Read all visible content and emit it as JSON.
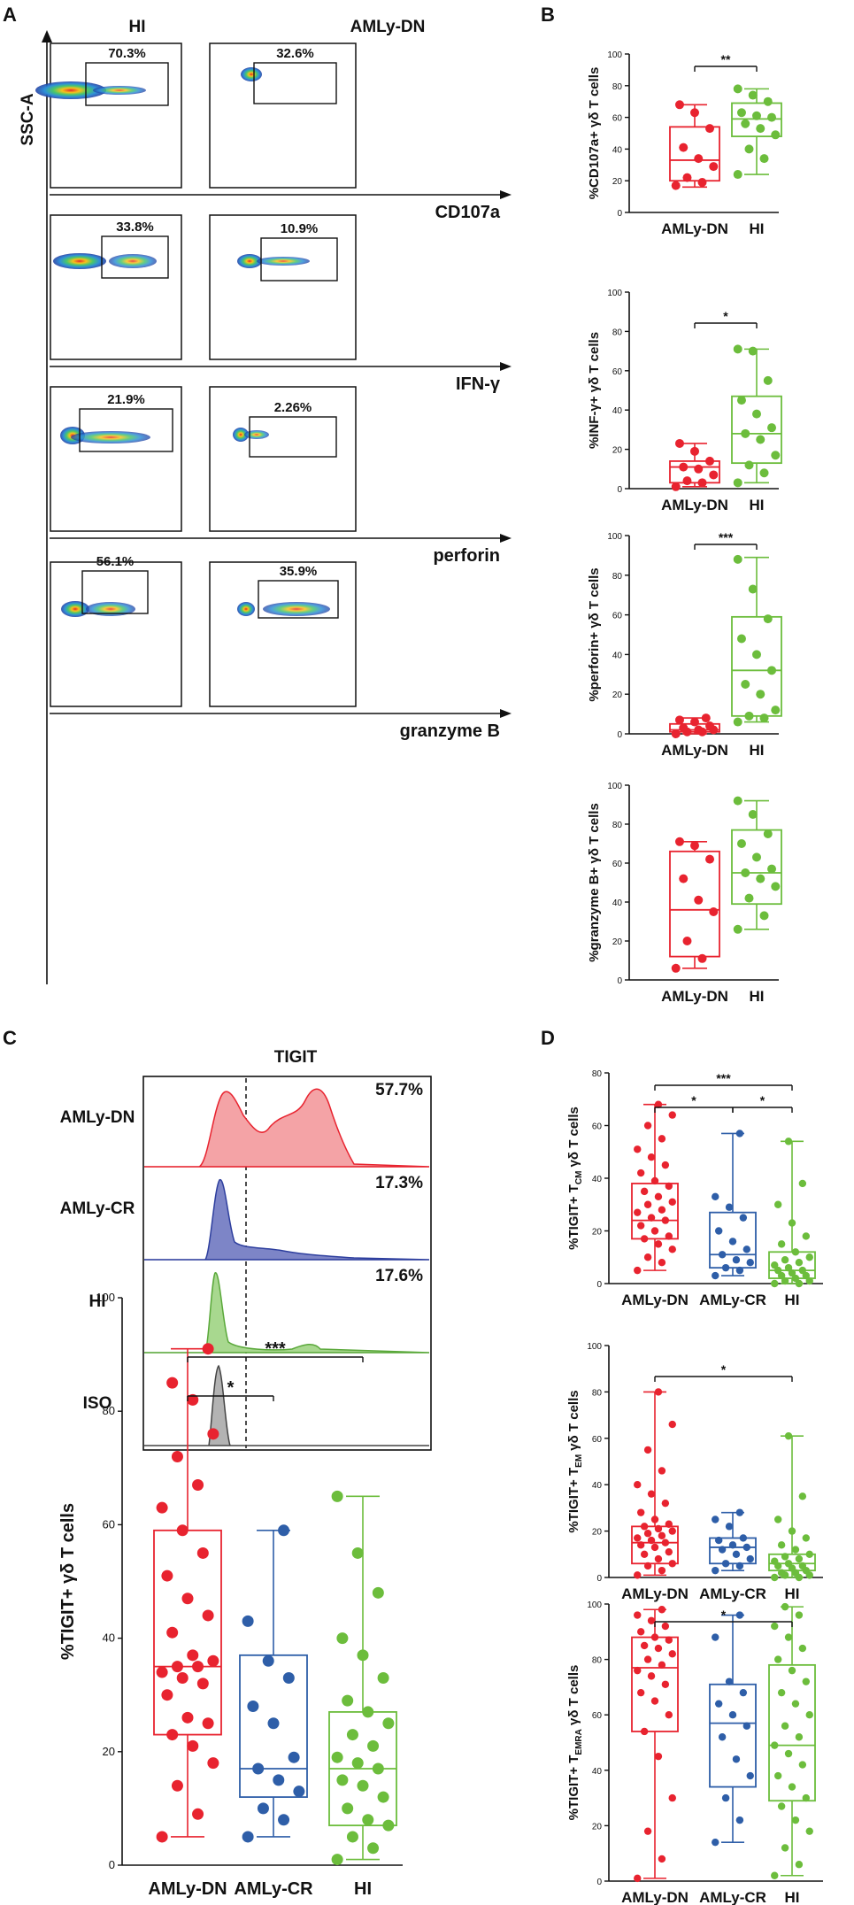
{
  "panels": {
    "A": "A",
    "B": "B",
    "C": "C",
    "D": "D"
  },
  "colors": {
    "AMLy-DN": "#e8232f",
    "AMLy-CR": "#2e5ea8",
    "HI": "#6cbd3c"
  },
  "panelA": {
    "y_axis_label": "SSC-A",
    "columns": [
      "HI",
      "AMLy-DN"
    ],
    "rows": [
      {
        "marker": "CD107a",
        "hi_pct": "70.3%",
        "dn_pct": "32.6%"
      },
      {
        "marker": "IFN-γ",
        "hi_pct": "33.8%",
        "dn_pct": "10.9%"
      },
      {
        "marker": "perforin",
        "hi_pct": "21.9%",
        "dn_pct": "2.26%"
      },
      {
        "marker": "granzyme B",
        "hi_pct": "56.1%",
        "dn_pct": "35.9%"
      }
    ]
  },
  "panelC_hist": {
    "title": "TIGIT",
    "rows": [
      {
        "label": "AMLy-DN",
        "pct": "57.7%",
        "color": "#e8232f",
        "fill": "#f4a3a6"
      },
      {
        "label": "AMLy-CR",
        "pct": "17.3%",
        "color": "#2e3f9e",
        "fill": "#7d85c7"
      },
      {
        "label": "HI",
        "pct": "17.6%",
        "color": "#5aa83a",
        "fill": "#a8d88f"
      },
      {
        "label": "ISO",
        "pct": "",
        "color": "#444444",
        "fill": "#b3b3b3"
      }
    ]
  },
  "chart_data": [
    {
      "id": "B1",
      "type": "box",
      "ylabel": "%CD107a+ γδ T cells",
      "ylim": [
        0,
        100
      ],
      "yticks": [
        0,
        20,
        40,
        60,
        80,
        100
      ],
      "categories": [
        "AMLy-DN",
        "HI"
      ],
      "boxes": [
        {
          "min": 16,
          "q1": 20,
          "median": 33,
          "q3": 54,
          "max": 68
        },
        {
          "min": 24,
          "q1": 48,
          "median": 59,
          "q3": 69,
          "max": 78
        }
      ],
      "points": [
        [
          17,
          19,
          22,
          29,
          34,
          41,
          53,
          63,
          68
        ],
        [
          24,
          34,
          40,
          49,
          53,
          56,
          60,
          61,
          63,
          70,
          74,
          78
        ]
      ],
      "sig": [
        {
          "from": 0,
          "to": 1,
          "label": "**"
        }
      ]
    },
    {
      "id": "B2",
      "type": "box",
      "ylabel": "%INF-γ+ γδ T cells",
      "ylim": [
        0,
        100
      ],
      "yticks": [
        0,
        20,
        40,
        60,
        80,
        100
      ],
      "categories": [
        "AMLy-DN",
        "HI"
      ],
      "boxes": [
        {
          "min": 1,
          "q1": 3,
          "median": 11,
          "q3": 14,
          "max": 23
        },
        {
          "min": 3,
          "q1": 13,
          "median": 28,
          "q3": 47,
          "max": 71
        }
      ],
      "points": [
        [
          1,
          3,
          4,
          7,
          10,
          11,
          14,
          19,
          23
        ],
        [
          3,
          8,
          12,
          17,
          25,
          28,
          31,
          38,
          45,
          55,
          70,
          71
        ]
      ],
      "sig": [
        {
          "from": 0,
          "to": 1,
          "label": "*"
        }
      ]
    },
    {
      "id": "B3",
      "type": "box",
      "ylabel": "%perforin+ γδ T cells",
      "ylim": [
        0,
        100
      ],
      "yticks": [
        0,
        20,
        40,
        60,
        80,
        100
      ],
      "categories": [
        "AMLy-DN",
        "HI"
      ],
      "boxes": [
        {
          "min": 0,
          "q1": 1,
          "median": 2,
          "q3": 5,
          "max": 8
        },
        {
          "min": 6,
          "q1": 9,
          "median": 32,
          "q3": 59,
          "max": 89
        }
      ],
      "points": [
        [
          0,
          1,
          1,
          2,
          2,
          3,
          4,
          6,
          7,
          8
        ],
        [
          6,
          8,
          9,
          12,
          20,
          25,
          32,
          40,
          48,
          58,
          73,
          88
        ]
      ],
      "sig": [
        {
          "from": 0,
          "to": 1,
          "label": "***"
        }
      ]
    },
    {
      "id": "B4",
      "type": "box",
      "ylabel": "%granzyme B+ γδ T cells",
      "ylim": [
        0,
        100
      ],
      "yticks": [
        0,
        20,
        40,
        60,
        80,
        100
      ],
      "categories": [
        "AMLy-DN",
        "HI"
      ],
      "boxes": [
        {
          "min": 6,
          "q1": 12,
          "median": 36,
          "q3": 66,
          "max": 71
        },
        {
          "min": 26,
          "q1": 39,
          "median": 55,
          "q3": 77,
          "max": 92
        }
      ],
      "points": [
        [
          6,
          11,
          20,
          35,
          41,
          52,
          62,
          69,
          71
        ],
        [
          26,
          33,
          42,
          48,
          52,
          55,
          57,
          63,
          70,
          75,
          85,
          92
        ]
      ],
      "sig": []
    },
    {
      "id": "C",
      "type": "box",
      "ylabel": "%TIGIT+ γδ T cells",
      "ylim": [
        0,
        100
      ],
      "yticks": [
        0,
        20,
        40,
        60,
        80,
        100
      ],
      "categories": [
        "AMLy-DN",
        "AMLy-CR",
        "HI"
      ],
      "boxes": [
        {
          "min": 5,
          "q1": 23,
          "median": 35,
          "q3": 59,
          "max": 91
        },
        {
          "min": 5,
          "q1": 12,
          "median": 17,
          "q3": 37,
          "max": 59
        },
        {
          "min": 1,
          "q1": 7,
          "median": 17,
          "q3": 27,
          "max": 65
        }
      ],
      "points": [
        [
          5,
          9,
          14,
          18,
          21,
          23,
          25,
          26,
          30,
          32,
          33,
          34,
          35,
          35,
          36,
          37,
          41,
          44,
          47,
          51,
          55,
          59,
          63,
          67,
          72,
          76,
          82,
          85,
          91
        ],
        [
          5,
          8,
          10,
          13,
          15,
          17,
          19,
          25,
          28,
          33,
          36,
          43,
          59
        ],
        [
          1,
          3,
          5,
          7,
          8,
          10,
          12,
          14,
          15,
          17,
          18,
          19,
          21,
          23,
          25,
          27,
          29,
          33,
          37,
          40,
          48,
          55,
          65
        ]
      ],
      "sig": [
        {
          "from": 0,
          "to": 1,
          "label": "*"
        },
        {
          "from": 0,
          "to": 2,
          "label": "***"
        }
      ]
    },
    {
      "id": "D1",
      "type": "box",
      "ylabel": "%TIGIT+ T",
      "ysub": "CM",
      "ylabel_tail": " γδ T cells",
      "ylim": [
        0,
        80
      ],
      "yticks": [
        0,
        20,
        40,
        60,
        80
      ],
      "categories": [
        "AMLy-DN",
        "AMLy-CR",
        "HI"
      ],
      "boxes": [
        {
          "min": 5,
          "q1": 17,
          "median": 24,
          "q3": 38,
          "max": 68
        },
        {
          "min": 3,
          "q1": 6,
          "median": 11,
          "q3": 27,
          "max": 57
        },
        {
          "min": 0,
          "q1": 2,
          "median": 5,
          "q3": 12,
          "max": 54
        }
      ],
      "points": [
        [
          5,
          8,
          10,
          13,
          15,
          17,
          18,
          20,
          22,
          24,
          25,
          27,
          28,
          30,
          31,
          33,
          35,
          37,
          39,
          42,
          45,
          48,
          51,
          55,
          60,
          64,
          68
        ],
        [
          3,
          5,
          6,
          8,
          9,
          11,
          13,
          16,
          20,
          25,
          29,
          33,
          57
        ],
        [
          0,
          0,
          1,
          1,
          2,
          3,
          3,
          4,
          5,
          5,
          6,
          7,
          8,
          9,
          10,
          12,
          15,
          18,
          23,
          30,
          38,
          54
        ]
      ],
      "sig": [
        {
          "from": 0,
          "to": 1,
          "label": "*"
        },
        {
          "from": 1,
          "to": 2,
          "label": "*"
        },
        {
          "from": 0,
          "to": 2,
          "label": "***"
        }
      ]
    },
    {
      "id": "D2",
      "type": "box",
      "ylabel": "%TIGIT+ T",
      "ysub": "EM",
      "ylabel_tail": " γδ T cells",
      "ylim": [
        0,
        100
      ],
      "yticks": [
        0,
        20,
        40,
        60,
        80,
        100
      ],
      "categories": [
        "AMLy-DN",
        "AMLy-CR",
        "HI"
      ],
      "boxes": [
        {
          "min": 1,
          "q1": 6,
          "median": 15,
          "q3": 22,
          "max": 80
        },
        {
          "min": 3,
          "q1": 6,
          "median": 13,
          "q3": 17,
          "max": 28
        },
        {
          "min": 0,
          "q1": 3,
          "median": 6,
          "q3": 10,
          "max": 61
        }
      ],
      "points": [
        [
          1,
          3,
          5,
          6,
          8,
          10,
          11,
          13,
          14,
          15,
          16,
          17,
          18,
          19,
          20,
          21,
          22,
          23,
          25,
          28,
          32,
          36,
          40,
          46,
          55,
          66,
          80
        ],
        [
          3,
          5,
          6,
          8,
          10,
          12,
          13,
          14,
          16,
          17,
          22,
          25,
          28
        ],
        [
          0,
          0,
          1,
          1,
          2,
          2,
          3,
          4,
          5,
          5,
          6,
          7,
          8,
          9,
          10,
          12,
          14,
          17,
          20,
          25,
          35,
          61
        ]
      ],
      "sig": [
        {
          "from": 0,
          "to": 2,
          "label": "*"
        }
      ]
    },
    {
      "id": "D3",
      "type": "box",
      "ylabel": "%TIGIT+ T",
      "ysub": "EMRA",
      "ylabel_tail": " γδ T cells",
      "ylim": [
        0,
        100
      ],
      "yticks": [
        0,
        20,
        40,
        60,
        80,
        100
      ],
      "categories": [
        "AMLy-DN",
        "AMLy-CR",
        "HI"
      ],
      "boxes": [
        {
          "min": 1,
          "q1": 54,
          "median": 77,
          "q3": 88,
          "max": 98
        },
        {
          "min": 14,
          "q1": 34,
          "median": 57,
          "q3": 71,
          "max": 96
        },
        {
          "min": 2,
          "q1": 29,
          "median": 49,
          "q3": 78,
          "max": 99
        }
      ],
      "points": [
        [
          1,
          8,
          18,
          30,
          45,
          54,
          60,
          65,
          68,
          71,
          74,
          76,
          78,
          80,
          82,
          84,
          85,
          87,
          88,
          90,
          92,
          94,
          96,
          98
        ],
        [
          14,
          22,
          30,
          38,
          44,
          52,
          56,
          60,
          64,
          68,
          72,
          88,
          96
        ],
        [
          2,
          6,
          12,
          18,
          22,
          27,
          30,
          34,
          38,
          42,
          46,
          49,
          52,
          56,
          60,
          64,
          68,
          72,
          76,
          80,
          84,
          88,
          92,
          96,
          99
        ]
      ],
      "sig": [
        {
          "from": 0,
          "to": 2,
          "label": "*"
        }
      ]
    }
  ]
}
